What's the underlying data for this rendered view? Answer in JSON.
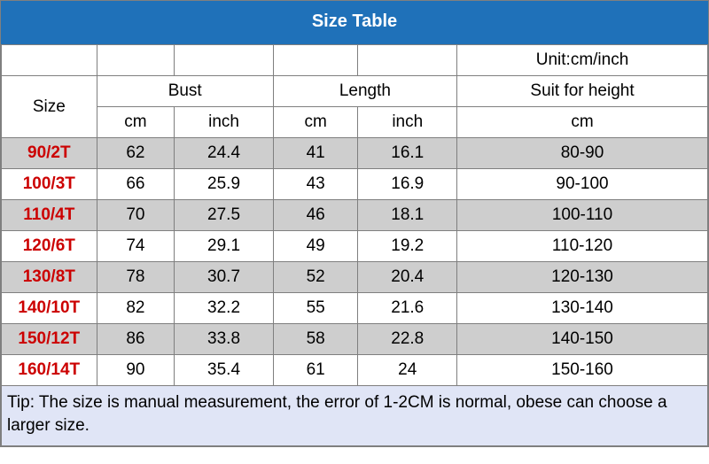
{
  "title": "Size Table",
  "unit_label": "Unit:cm/inch",
  "headers": {
    "size": "Size",
    "bust": "Bust",
    "length": "Length",
    "suit": "Suit for height",
    "cm": "cm",
    "inch": "inch"
  },
  "colors": {
    "title_bg": "#1f71b9",
    "title_fg": "#ffffff",
    "stripe": "#cecece",
    "size_fg": "#cc0000",
    "border": "#7f7f7f",
    "tip_bg": "#e0e5f6",
    "text": "#000000"
  },
  "rows": [
    {
      "size": "90/2T",
      "bust_cm": "62",
      "bust_in": "24.4",
      "len_cm": "41",
      "len_in": "16.1",
      "height": "80-90"
    },
    {
      "size": "100/3T",
      "bust_cm": "66",
      "bust_in": "25.9",
      "len_cm": "43",
      "len_in": "16.9",
      "height": "90-100"
    },
    {
      "size": "110/4T",
      "bust_cm": "70",
      "bust_in": "27.5",
      "len_cm": "46",
      "len_in": "18.1",
      "height": "100-110"
    },
    {
      "size": "120/6T",
      "bust_cm": "74",
      "bust_in": "29.1",
      "len_cm": "49",
      "len_in": "19.2",
      "height": "110-120"
    },
    {
      "size": "130/8T",
      "bust_cm": "78",
      "bust_in": "30.7",
      "len_cm": "52",
      "len_in": "20.4",
      "height": "120-130"
    },
    {
      "size": "140/10T",
      "bust_cm": "82",
      "bust_in": "32.2",
      "len_cm": "55",
      "len_in": "21.6",
      "height": "130-140"
    },
    {
      "size": "150/12T",
      "bust_cm": "86",
      "bust_in": "33.8",
      "len_cm": "58",
      "len_in": "22.8",
      "height": "140-150"
    },
    {
      "size": "160/14T",
      "bust_cm": "90",
      "bust_in": "35.4",
      "len_cm": "61",
      "len_in": "24",
      "height": "150-160"
    }
  ],
  "tip": "Tip: The size is manual measurement, the error of 1-2CM is normal, obese can choose a larger size."
}
